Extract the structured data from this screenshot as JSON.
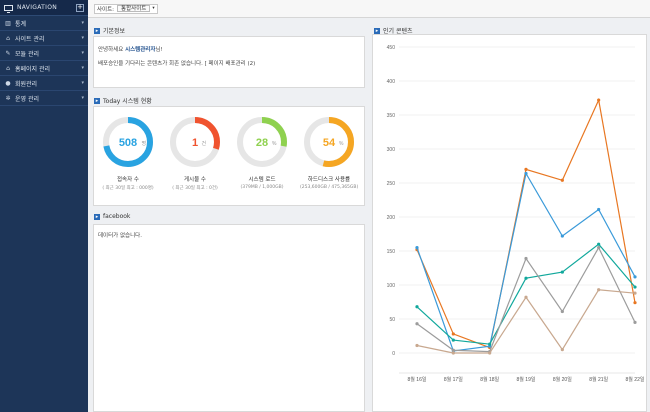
{
  "sidebar": {
    "title": "NAVIGATION",
    "items": [
      {
        "label": "통계"
      },
      {
        "label": "사이트 관리"
      },
      {
        "label": "모듈 관리"
      },
      {
        "label": "홈페이지 관리"
      },
      {
        "label": "회원관리"
      },
      {
        "label": "운영 관리"
      }
    ]
  },
  "topbar": {
    "site_label": "사이트:",
    "site_value": "통합사이트"
  },
  "basic_info": {
    "title": "기본정보",
    "line1_prefix": "안녕하세요 ",
    "line1_name": "시스템관리자",
    "line1_suffix": "님!",
    "line2": "배포승인을 기다리는 콘텐츠가 회존 없습니다. [ 페이지 배포관리 (2)"
  },
  "today": {
    "title": "Today 시스템 현황",
    "gauges": [
      {
        "value": "508",
        "unit": "명",
        "label": "접속자 수",
        "sub": "( 최근 30일 최고 : 000명)",
        "percent": 72,
        "color": "#29a3e1"
      },
      {
        "value": "1",
        "unit": "건",
        "label": "게시물 수",
        "sub": "( 최근 30일 최고 : 0건)",
        "percent": 30,
        "color": "#f0532f"
      },
      {
        "value": "28",
        "unit": "%",
        "label": "시스템 로드",
        "sub": "(379MB / 1,000GB)",
        "percent": 28,
        "color": "#8fd14f"
      },
      {
        "value": "54",
        "unit": "%",
        "label": "하드디스크 사용률",
        "sub": "(253,600GB / 475,365GB)",
        "percent": 54,
        "color": "#f5a623"
      }
    ]
  },
  "facebook": {
    "title": "facebook",
    "empty_text": "데이터가 없습니다."
  },
  "popular": {
    "title": "인기 콘텐츠"
  },
  "chart_data": {
    "type": "line",
    "title": "",
    "x": [
      "8월 16일",
      "8월 17일",
      "8월 18일",
      "8월 19일",
      "8월 20일",
      "8월 21일",
      "8월 22일"
    ],
    "ylim": [
      0,
      450
    ],
    "yticks": [
      0,
      50,
      100,
      150,
      200,
      250,
      300,
      350,
      400,
      450
    ],
    "grid": true,
    "series": [
      {
        "color": "#e87722",
        "values": [
          152,
          28,
          8,
          270,
          254,
          372,
          74
        ]
      },
      {
        "color": "#3a9ad9",
        "values": [
          155,
          3,
          10,
          264,
          172,
          211,
          112
        ]
      },
      {
        "color": "#11a89c",
        "values": [
          68,
          19,
          13,
          110,
          119,
          160,
          97
        ]
      },
      {
        "color": "#9c9c9c",
        "values": [
          43,
          4,
          2,
          139,
          61,
          155,
          45
        ]
      },
      {
        "color": "#c8a88f",
        "values": [
          11,
          0,
          0,
          82,
          5,
          93,
          88
        ]
      }
    ]
  }
}
